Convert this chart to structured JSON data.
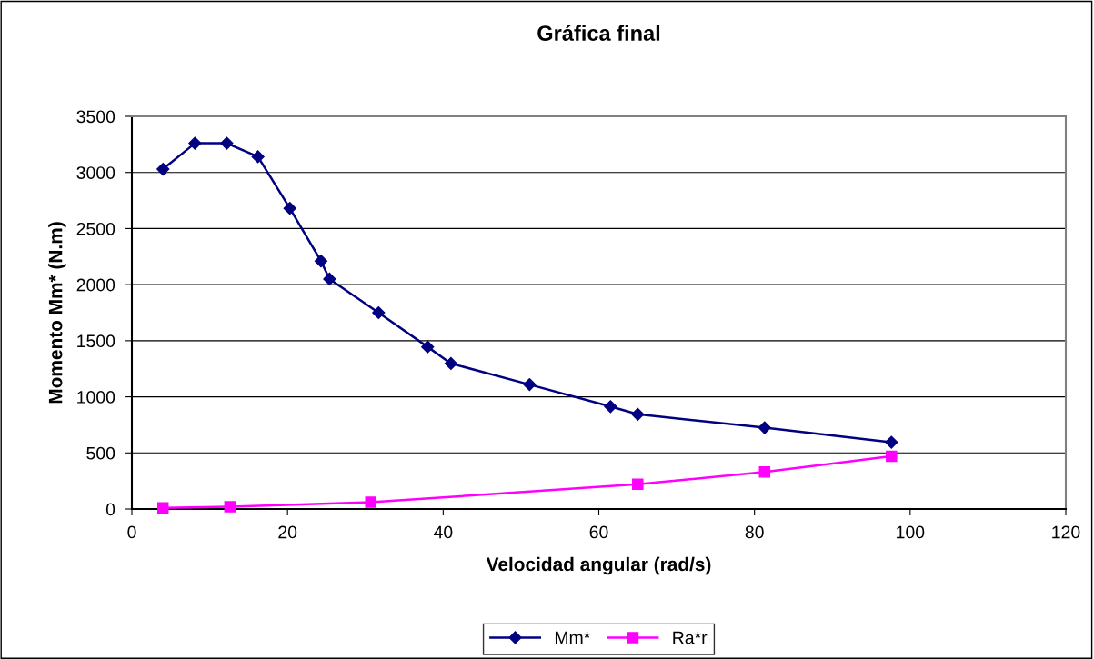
{
  "chart_data": {
    "type": "line",
    "title": "Gráfica final",
    "xlabel": "Velocidad angular (rad/s)",
    "ylabel": "Momento Mm* (N.m)",
    "xlim": [
      0,
      120
    ],
    "xticks": [
      0,
      20,
      40,
      60,
      80,
      100,
      120
    ],
    "ylim": [
      0,
      3500
    ],
    "yticks": [
      0,
      500,
      1000,
      1500,
      2000,
      2500,
      3000,
      3500
    ],
    "grid": "y",
    "legend": "bottom",
    "line_style": "solid",
    "series": [
      {
        "name": "Mm*",
        "color": "#000080",
        "marker": "diamond",
        "x": [
          4.0,
          8.1,
          12.2,
          16.2,
          20.3,
          24.3,
          25.4,
          31.7,
          38.0,
          41.0,
          51.1,
          61.5,
          65.0,
          81.3,
          97.6
        ],
        "values": [
          3030,
          3260,
          3260,
          3140,
          2680,
          2210,
          2050,
          1750,
          1445,
          1297,
          1109,
          913,
          844,
          725,
          595
        ]
      },
      {
        "name": "Ra*r",
        "color": "#ff00ff",
        "marker": "square",
        "x": [
          4.0,
          12.6,
          30.7,
          65.0,
          81.3,
          97.6
        ],
        "values": [
          10,
          20,
          60,
          220,
          330,
          470
        ]
      }
    ]
  }
}
